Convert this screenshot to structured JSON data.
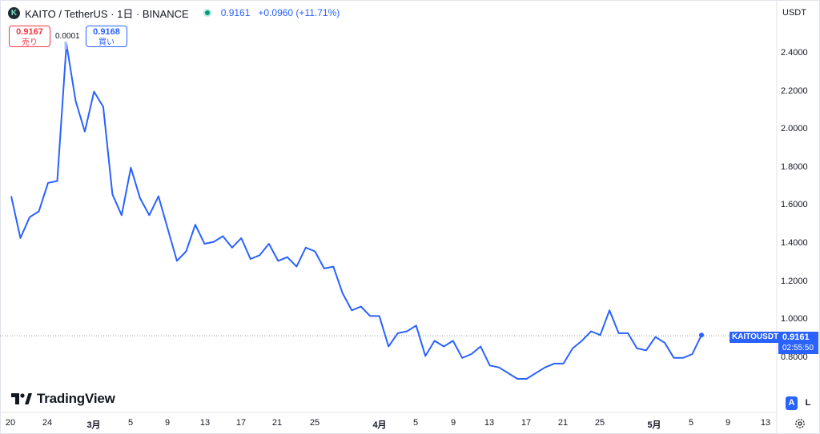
{
  "header": {
    "logo_glyph": "K",
    "title": "KAITO / TetherUS · 1日 · BINANCE",
    "price": "0.9161",
    "change": "+0.0960 (+11.71%)"
  },
  "trade": {
    "sell_price": "0.9167",
    "sell_label": "売り",
    "spread": "0.0001",
    "buy_price": "0.9168",
    "buy_label": "買い"
  },
  "axis": {
    "currency": "USDT",
    "price_ticks": [
      "2.4000",
      "2.2000",
      "2.0000",
      "1.8000",
      "1.6000",
      "1.4000",
      "1.2000",
      "1.0000",
      "0.8000"
    ],
    "date_ticks": [
      "20",
      "24",
      "3月",
      "5",
      "9",
      "13",
      "17",
      "21",
      "25",
      "4月",
      "5",
      "9",
      "13",
      "17",
      "21",
      "25",
      "5月",
      "5",
      "9",
      "13"
    ],
    "bold_ticks": [
      "3月",
      "4月",
      "5月"
    ]
  },
  "last_price": {
    "symbol": "KAITOUSDT",
    "price": "0.9161",
    "countdown": "02:55:50"
  },
  "branding": {
    "name": "TradingView"
  },
  "controls": {
    "auto": "A",
    "log": "L"
  },
  "colors": {
    "line": "#2962ff",
    "accent": "#2962ff",
    "sell": "#f23645",
    "status": "#089981"
  },
  "chart_data": {
    "type": "line",
    "series": [
      {
        "values": [
          1.65,
          1.43,
          1.54,
          1.57,
          1.72,
          1.73,
          2.45,
          2.15,
          1.99,
          2.2,
          2.12,
          1.66,
          1.55,
          1.8,
          1.64,
          1.55,
          1.65,
          1.48,
          1.31,
          1.36,
          1.5,
          1.4,
          1.41,
          1.44,
          1.38,
          1.43,
          1.32,
          1.34,
          1.4,
          1.31,
          1.33,
          1.28,
          1.38,
          1.36,
          1.27,
          1.28,
          1.14,
          1.05,
          1.07,
          1.02,
          1.02,
          0.86,
          0.93,
          0.94,
          0.97,
          0.81,
          0.89,
          0.86,
          0.89,
          0.8,
          0.82,
          0.86,
          0.76,
          0.75,
          0.72,
          0.69,
          0.69,
          0.72,
          0.75,
          0.77,
          0.77,
          0.85,
          0.89,
          0.94,
          0.92,
          1.05,
          0.93,
          0.93,
          0.85,
          0.84,
          0.91,
          0.88,
          0.8,
          0.8,
          0.82,
          0.92
        ]
      }
    ],
    "x_start": "2025-02-20",
    "last_price_line": 0.9161,
    "ylim": [
      0.7,
      2.5
    ],
    "yticks": [
      0.8,
      1.0,
      1.2,
      1.4,
      1.6,
      1.8,
      2.0,
      2.2,
      2.4
    ],
    "grid": false
  }
}
